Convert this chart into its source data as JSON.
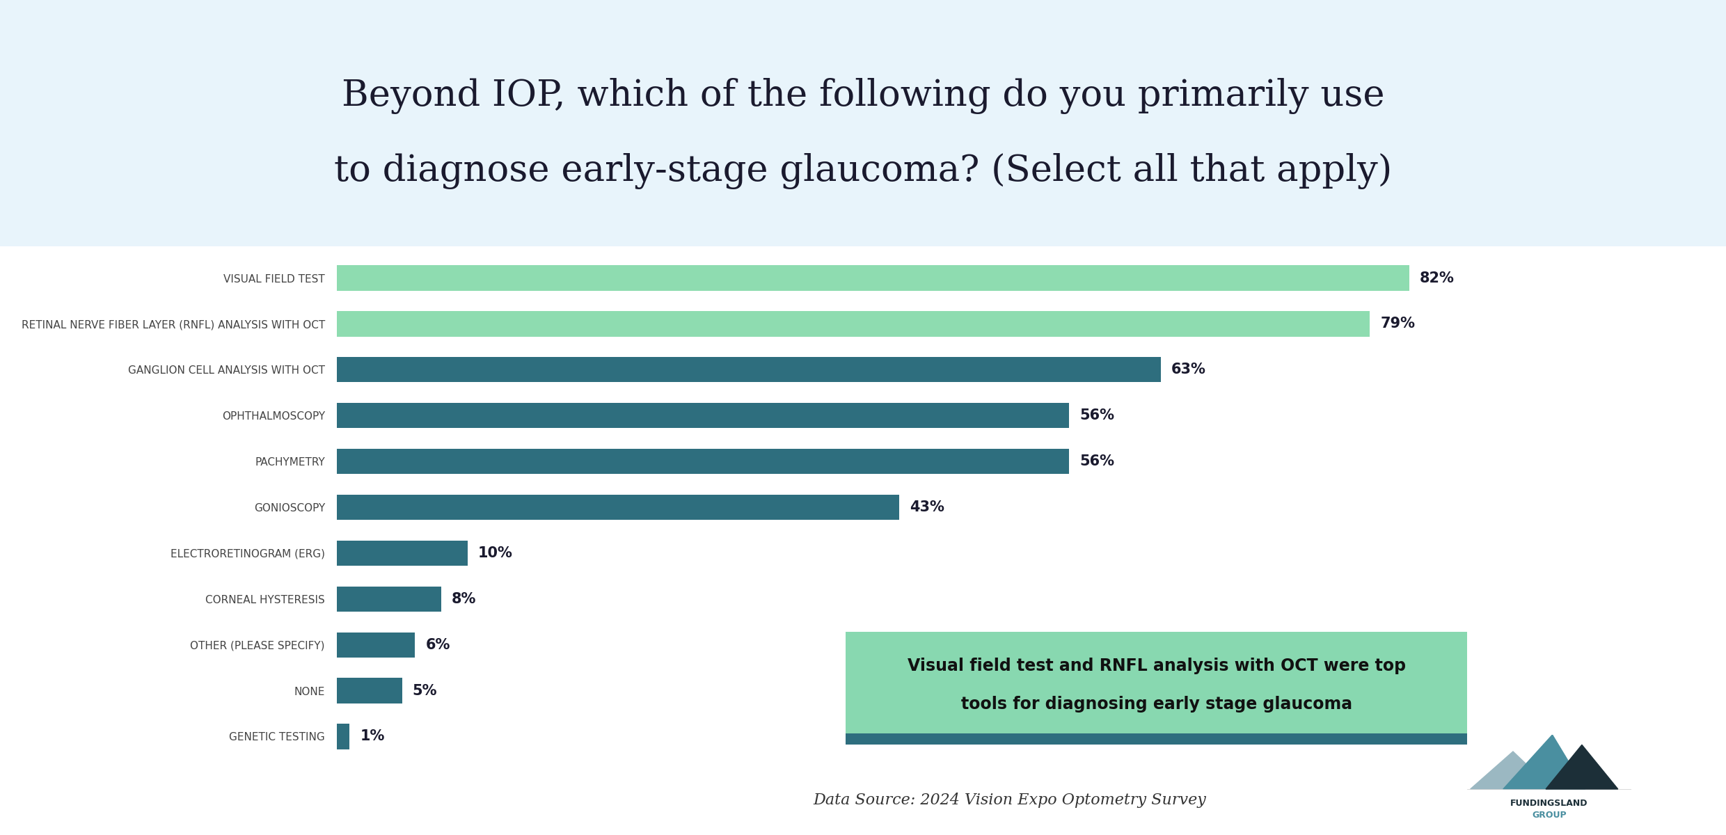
{
  "title_line1": "Beyond IOP, which of the following do you primarily use",
  "title_line2": "to diagnose early-stage glaucoma? (Select all that apply)",
  "categories": [
    "VISUAL FIELD TEST",
    "RETINAL NERVE FIBER LAYER (RNFL) ANALYSIS WITH OCT",
    "GANGLION CELL ANALYSIS WITH OCT",
    "OPHTHALMOSCOPY",
    "PACHYMETRY",
    "GONIOSCOPY",
    "ELECTRORETINOGRAM (ERG)",
    "CORNEAL HYSTERESIS",
    "OTHER (PLEASE SPECIFY)",
    "NONE",
    "GENETIC TESTING"
  ],
  "values": [
    82,
    79,
    63,
    56,
    56,
    43,
    10,
    8,
    6,
    5,
    1
  ],
  "bar_colors": [
    "#8EDCB0",
    "#8EDCB0",
    "#2E6E7E",
    "#2E6E7E",
    "#2E6E7E",
    "#2E6E7E",
    "#2E6E7E",
    "#2E6E7E",
    "#2E6E7E",
    "#2E6E7E",
    "#2E6E7E"
  ],
  "bg_color": "#E8F4FB",
  "chart_bg": "#FFFFFF",
  "title_color": "#1a1a2e",
  "bar_label_color": "#1a1a2e",
  "annotation_text_line1": "Visual field test and RNFL analysis with OCT were top",
  "annotation_text_line2": "tools for diagnosing early stage glaucoma",
  "annotation_bg": "#88D8B0",
  "annotation_border": "#2E6E7E",
  "datasource": "Data Source: 2024 Vision Expo Optometry Survey",
  "xlim": [
    0,
    95
  ],
  "title_fontsize": 38,
  "label_fontsize": 11,
  "value_fontsize": 15,
  "annotation_fontsize": 17,
  "datasource_fontsize": 16
}
